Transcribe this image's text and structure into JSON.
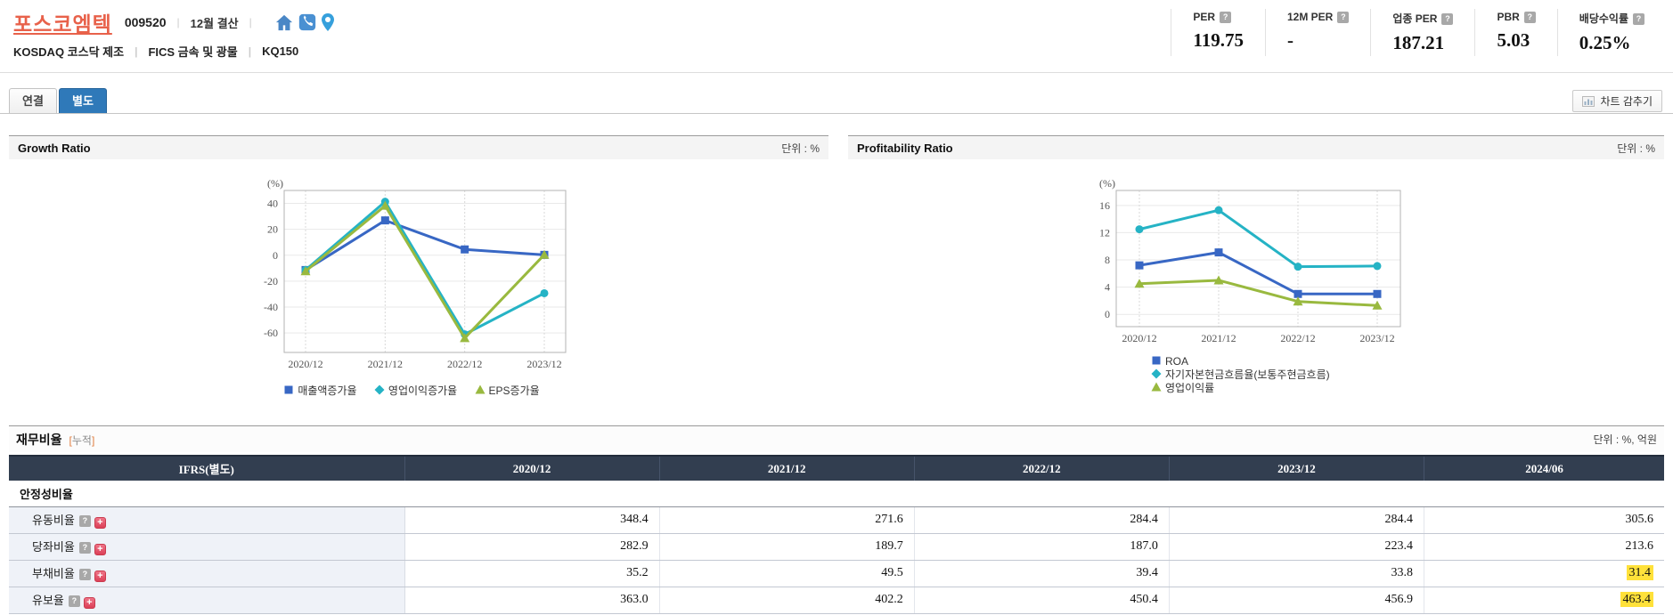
{
  "badges": {
    "help": "?",
    "expand": "+"
  },
  "header": {
    "company": "포스코엠텍",
    "code": "009520",
    "fiscal": "12월 결산",
    "divider": "|",
    "market_line": {
      "market": "KOSDAQ 코스닥 제조",
      "fics": "FICS 금속 및 광물",
      "index": "KQ150"
    },
    "metrics": [
      {
        "label": "PER",
        "value": "119.75"
      },
      {
        "label": "12M PER",
        "value": "-"
      },
      {
        "label": "업종 PER",
        "value": "187.21"
      },
      {
        "label": "PBR",
        "value": "5.03"
      },
      {
        "label": "배당수익률",
        "value": "0.25%"
      }
    ]
  },
  "tabs": {
    "consolidated": "연결",
    "separate": "별도"
  },
  "toolbar": {
    "chart_toggle": "차트 감추기"
  },
  "panels": [
    {
      "title": "Growth Ratio",
      "unit": "단위 : %"
    },
    {
      "title": "Profitability Ratio",
      "unit": "단위 : %"
    }
  ],
  "chart_data": [
    {
      "type": "line",
      "title": "Growth Ratio",
      "axis_label": "(%)",
      "categories": [
        "2020/12",
        "2021/12",
        "2022/12",
        "2023/12"
      ],
      "yticks": [
        40,
        20,
        0,
        -20,
        -40,
        -60
      ],
      "ylim": [
        -75,
        50
      ],
      "grid": true,
      "legend_position": "bottom-horizontal",
      "series": [
        {
          "name": "매출액증가율",
          "color": "#3867c4",
          "marker": "square",
          "values": [
            -11.4,
            26.9,
            4.5,
            0.3
          ]
        },
        {
          "name": "영업이익증가율",
          "color": "#25b3c5",
          "marker": "circle",
          "values": [
            -11.4,
            41.3,
            -61.0,
            -29.3
          ]
        },
        {
          "name": "EPS증가율",
          "color": "#99b93f",
          "marker": "triangle",
          "values": [
            -12.3,
            38.2,
            -63.9,
            0.4
          ]
        }
      ]
    },
    {
      "type": "line",
      "title": "Profitability Ratio",
      "axis_label": "(%)",
      "categories": [
        "2020/12",
        "2021/12",
        "2022/12",
        "2023/12"
      ],
      "yticks": [
        16,
        12,
        8,
        4,
        0
      ],
      "ylim": [
        -1.8,
        18.2
      ],
      "grid": true,
      "legend_position": "bottom-vertical",
      "series": [
        {
          "name": "ROA",
          "color": "#3867c4",
          "marker": "square",
          "values": [
            7.2,
            9.1,
            3.0,
            3.0
          ]
        },
        {
          "name": "자기자본현금흐름율(보통주현금흐름)",
          "color": "#25b3c5",
          "marker": "circle",
          "values": [
            12.5,
            15.3,
            7.0,
            7.1
          ]
        },
        {
          "name": "영업이익률",
          "color": "#99b93f",
          "marker": "triangle",
          "values": [
            4.5,
            5.0,
            1.9,
            1.3
          ]
        }
      ]
    }
  ],
  "table": {
    "title": "재무비율",
    "tag_open": "[",
    "tag_label": "누적",
    "tag_close": "]",
    "unit": "단위 : %, 억원",
    "columns": [
      "IFRS(별도)",
      "2020/12",
      "2021/12",
      "2022/12",
      "2023/12",
      "2024/06"
    ],
    "section": "안정성비율",
    "rows": [
      {
        "label": "유동비율",
        "values": [
          "348.4",
          "271.6",
          "284.4",
          "284.4",
          "305.6"
        ]
      },
      {
        "label": "당좌비율",
        "values": [
          "282.9",
          "189.7",
          "187.0",
          "223.4",
          "213.6"
        ]
      },
      {
        "label": "부채비율",
        "values": [
          "35.2",
          "49.5",
          "39.4",
          "33.8",
          "31.4"
        ]
      },
      {
        "label": "유보율",
        "values": [
          "363.0",
          "402.2",
          "450.4",
          "456.9",
          "463.4"
        ]
      }
    ]
  }
}
